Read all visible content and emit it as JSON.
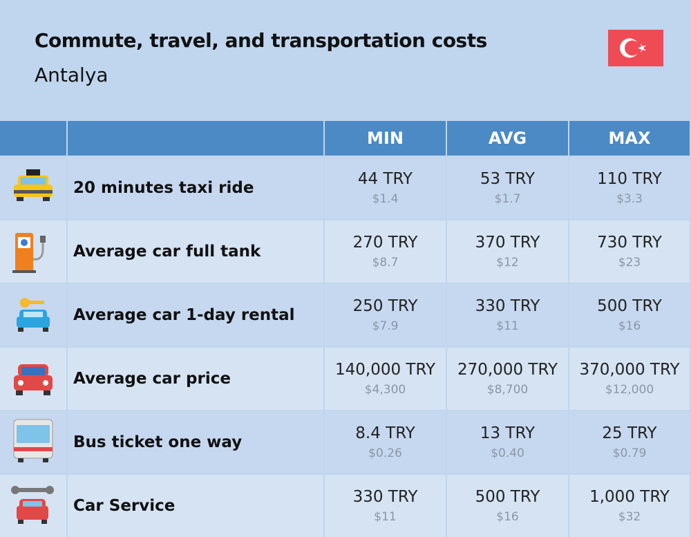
{
  "header": {
    "title": "Commute, travel, and transportation costs",
    "subtitle": "Antalya"
  },
  "table": {
    "columns": [
      "MIN",
      "AVG",
      "MAX"
    ],
    "rows": [
      {
        "label": "20 minutes taxi ride",
        "cells": [
          {
            "local": "44 TRY",
            "usd": "$1.4"
          },
          {
            "local": "53 TRY",
            "usd": "$1.7"
          },
          {
            "local": "110 TRY",
            "usd": "$3.3"
          }
        ]
      },
      {
        "label": "Average car full tank",
        "cells": [
          {
            "local": "270 TRY",
            "usd": "$8.7"
          },
          {
            "local": "370 TRY",
            "usd": "$12"
          },
          {
            "local": "730 TRY",
            "usd": "$23"
          }
        ]
      },
      {
        "label": "Average car 1-day rental",
        "cells": [
          {
            "local": "250 TRY",
            "usd": "$7.9"
          },
          {
            "local": "330 TRY",
            "usd": "$11"
          },
          {
            "local": "500 TRY",
            "usd": "$16"
          }
        ]
      },
      {
        "label": "Average car price",
        "cells": [
          {
            "local": "140,000 TRY",
            "usd": "$4,300"
          },
          {
            "local": "270,000 TRY",
            "usd": "$8,700"
          },
          {
            "local": "370,000 TRY",
            "usd": "$12,000"
          }
        ]
      },
      {
        "label": "Bus ticket one way",
        "cells": [
          {
            "local": "8.4 TRY",
            "usd": "$0.26"
          },
          {
            "local": "13 TRY",
            "usd": "$0.40"
          },
          {
            "local": "25 TRY",
            "usd": "$0.79"
          }
        ]
      },
      {
        "label": "Car Service",
        "cells": [
          {
            "local": "330 TRY",
            "usd": "$11"
          },
          {
            "local": "500 TRY",
            "usd": "$16"
          },
          {
            "local": "1,000 TRY",
            "usd": "$32"
          }
        ]
      }
    ]
  }
}
